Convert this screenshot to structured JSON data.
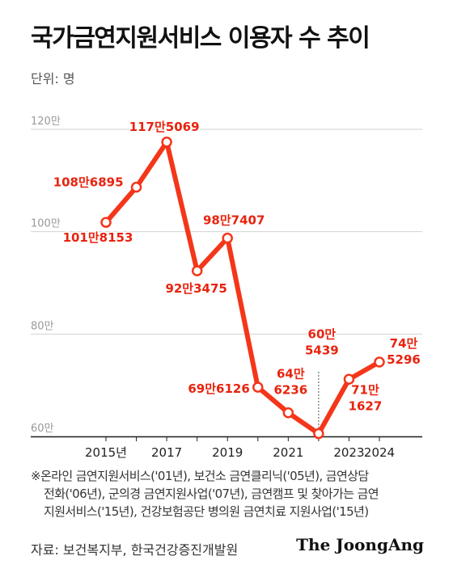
{
  "title": "국가금연지원서비스 이용자 수 추이",
  "unit_label": "단위: 명",
  "chart_data": {
    "type": "line",
    "title": "국가금연지원서비스 이용자 수 추이",
    "unit": "단위: 명",
    "x": [
      2015,
      2016,
      2017,
      2018,
      2019,
      2020,
      2021,
      2022,
      2023,
      2024
    ],
    "values": [
      1018153,
      1086895,
      1175069,
      923475,
      987407,
      696126,
      646236,
      605439,
      711627,
      745296
    ],
    "data_labels": [
      "101만8153",
      "108만6895",
      "117만5069",
      "92만3475",
      "98만7407",
      "69만6126",
      "64만\n6236",
      "60만\n5439",
      "71만\n1627",
      "74만\n5296"
    ],
    "x_tick_labels": [
      {
        "x": 2015,
        "label": "2015년"
      },
      {
        "x": 2017,
        "label": "2017"
      },
      {
        "x": 2019,
        "label": "2019"
      },
      {
        "x": 2021,
        "label": "2021"
      },
      {
        "x": 2023,
        "label": "2023"
      },
      {
        "x": 2024,
        "label": "2024"
      }
    ],
    "y_ticks": [
      {
        "value": 600000,
        "label": "60만"
      },
      {
        "value": 800000,
        "label": "80만"
      },
      {
        "value": 1000000,
        "label": "100만"
      },
      {
        "value": 1200000,
        "label": "120만"
      }
    ],
    "ylim": [
      600000,
      1200000
    ],
    "grid": true,
    "colors": {
      "line": "#f4361a",
      "label": "#e8230e",
      "grid": "#d2d2d2",
      "axis_text": "#999999"
    }
  },
  "footnote": {
    "lines": [
      "※온라인 금연지원서비스('01년), 보건소 금연클리닉('05년), 금연상담",
      "전화('06년), 군의경 금연지원사업('07년), 금연캠프 및 찾아가는 금연",
      "지원서비스('15년), 건강보험공단 병의원 금연치료 지원사업('15년)"
    ]
  },
  "source": "자료: 보건복지부, 한국건강증진개발원",
  "brand": "The JoongAng"
}
